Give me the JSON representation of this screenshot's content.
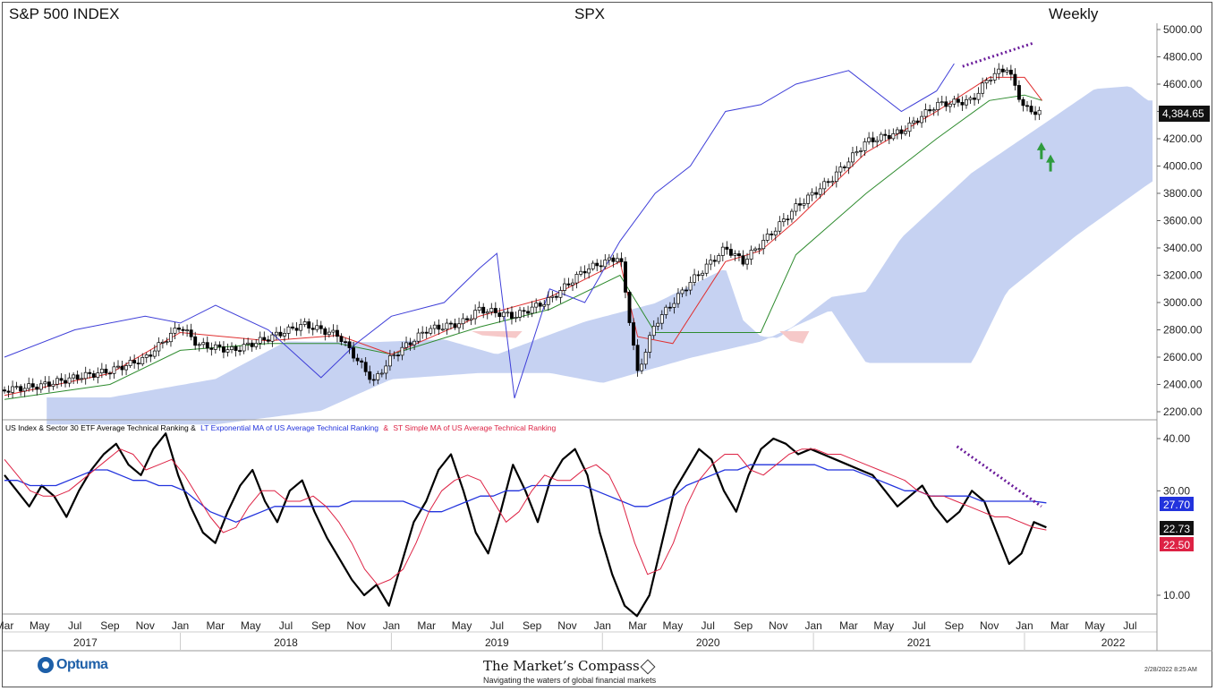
{
  "header": {
    "left": "S&P 500 INDEX",
    "center": "SPX",
    "right": "Weekly"
  },
  "footer": {
    "logo": "Optuma",
    "brand": "The Market’s Compass",
    "tagline": "Navigating the waters of global financial markets",
    "timestamp": "2/28/2022 8:25 AM"
  },
  "colors": {
    "price_candle": "#000000",
    "kijun": "#2e8b2e",
    "tenkan": "#e03030",
    "chikou": "#3f3fd8",
    "cloud_bull": "#c6d2f2",
    "cloud_bear": "#f6c9c9",
    "trendline": "#6a1b9a",
    "arrows": "#2e9b3e",
    "ranking": "#000000",
    "lt_ema": "#2233dd",
    "st_sma": "#dd2244"
  },
  "chart_data": [
    {
      "type": "candlestick",
      "title": "S&P 500 INDEX",
      "symbol": "SPX",
      "interval": "Weekly",
      "ylim": [
        2200,
        5000
      ],
      "y_ticks": [
        "5000.00",
        "4800.00",
        "4600.00",
        "4400.00",
        "4200.00",
        "4000.00",
        "3800.00",
        "3600.00",
        "3400.00",
        "3200.00",
        "3000.00",
        "2800.00",
        "2600.00",
        "2400.00",
        "2200.00"
      ],
      "last_value_label": "4,384.65",
      "series": [
        {
          "name": "close",
          "x": [
            "2017-03",
            "2017-05",
            "2017-07",
            "2017-09",
            "2017-11",
            "2018-01",
            "2018-02",
            "2018-04",
            "2018-06",
            "2018-08",
            "2018-10",
            "2018-12",
            "2019-01",
            "2019-03",
            "2019-05",
            "2019-06",
            "2019-08",
            "2019-10",
            "2019-12",
            "2020-02",
            "2020-03",
            "2020-04",
            "2020-06",
            "2020-08",
            "2020-09",
            "2020-11",
            "2020-12",
            "2021-02",
            "2021-04",
            "2021-06",
            "2021-08",
            "2021-10",
            "2021-11",
            "2021-12",
            "2022-01",
            "2022-02"
          ],
          "values": [
            2360,
            2390,
            2450,
            2500,
            2590,
            2830,
            2690,
            2650,
            2740,
            2840,
            2760,
            2420,
            2600,
            2800,
            2850,
            2950,
            2900,
            3020,
            3240,
            3340,
            2480,
            2850,
            3150,
            3400,
            3300,
            3560,
            3700,
            3900,
            4180,
            4250,
            4450,
            4480,
            4650,
            4720,
            4420,
            4385
          ]
        },
        {
          "name": "kijun",
          "x": [
            "2017-03",
            "2017-09",
            "2018-01",
            "2018-06",
            "2018-10",
            "2019-01",
            "2019-06",
            "2019-10",
            "2020-02",
            "2020-04",
            "2020-08",
            "2020-10",
            "2020-12",
            "2021-04",
            "2021-08",
            "2021-11",
            "2022-01",
            "2022-02"
          ],
          "values": [
            2290,
            2400,
            2650,
            2700,
            2700,
            2620,
            2820,
            2950,
            3200,
            2780,
            2780,
            2780,
            3350,
            3800,
            4200,
            4480,
            4520,
            4480
          ]
        },
        {
          "name": "tenkan",
          "x": [
            "2017-03",
            "2017-09",
            "2018-01",
            "2018-06",
            "2018-10",
            "2019-01",
            "2019-06",
            "2019-10",
            "2020-02",
            "2020-03",
            "2020-05",
            "2020-08",
            "2020-10",
            "2020-12",
            "2021-04",
            "2021-08",
            "2021-11",
            "2022-01",
            "2022-02"
          ],
          "values": [
            2320,
            2480,
            2780,
            2720,
            2760,
            2620,
            2900,
            3040,
            3300,
            2750,
            2700,
            3300,
            3380,
            3600,
            4100,
            4400,
            4650,
            4650,
            4480
          ]
        },
        {
          "name": "chikou",
          "x": [
            "2017-03",
            "2017-07",
            "2017-11",
            "2018-01",
            "2018-03",
            "2018-06",
            "2018-09",
            "2018-11",
            "2019-01",
            "2019-04",
            "2019-06",
            "2019-07",
            "2019-08",
            "2019-10",
            "2019-12",
            "2020-02",
            "2020-04",
            "2020-06",
            "2020-08",
            "2020-10",
            "2020-12",
            "2021-03",
            "2021-06",
            "2021-08",
            "2021-09"
          ],
          "values": [
            2600,
            2800,
            2900,
            2850,
            2980,
            2800,
            2450,
            2700,
            2900,
            3000,
            3250,
            3360,
            2300,
            3100,
            3000,
            3450,
            3800,
            4000,
            4400,
            4450,
            4600,
            4700,
            4400,
            4550,
            4750
          ]
        }
      ],
      "annotations": [
        {
          "type": "trendline",
          "style": "dotted",
          "from": [
            "2021-09",
            4730
          ],
          "to": [
            "2022-01",
            4900
          ]
        },
        {
          "type": "arrow",
          "direction": "up",
          "at": [
            "2022-01",
            4050
          ]
        },
        {
          "type": "arrow",
          "direction": "up",
          "at": [
            "2022-02",
            3960
          ]
        }
      ]
    },
    {
      "type": "line",
      "legend": [
        "US Index & Sector 30 ETF Average Technical  Ranking &",
        "LT Exponential MA of US Average Technical Ranking",
        "&",
        "ST Simple MA of US Average Technical Ranking"
      ],
      "ylim": [
        5,
        42
      ],
      "y_ticks": [
        "40.00",
        "30.00",
        "10.00"
      ],
      "last_value_labels": [
        "27.70",
        "22.73",
        "22.50"
      ],
      "x_month_labels": [
        "Mar",
        "May",
        "Jul",
        "Sep",
        "Nov",
        "Jan",
        "Mar",
        "May",
        "Jul",
        "Sep",
        "Nov",
        "Jan",
        "Mar",
        "May",
        "Jul",
        "Sep",
        "Nov",
        "Jan",
        "Mar",
        "May",
        "Jul",
        "Sep",
        "Nov",
        "Jan",
        "Mar",
        "May",
        "Jul",
        "Sep",
        "Nov",
        "Jan",
        "Mar",
        "May",
        "Jul"
      ],
      "x_year_labels": [
        "2017",
        "2018",
        "2019",
        "2020",
        "2021",
        "2022"
      ],
      "series": [
        {
          "name": "US Index & Sector 30 ETF Average Technical Ranking",
          "values": [
            33,
            30,
            27,
            31,
            29,
            25,
            30,
            34,
            37,
            39,
            35,
            33,
            38,
            41,
            33,
            27,
            22,
            20,
            26,
            31,
            34,
            28,
            24,
            30,
            32,
            26,
            21,
            17,
            13,
            10,
            12,
            8,
            16,
            24,
            28,
            34,
            37,
            30,
            22,
            18,
            26,
            35,
            30,
            24,
            32,
            36,
            38,
            33,
            22,
            14,
            8,
            6,
            10,
            20,
            30,
            34,
            38,
            36,
            30,
            26,
            33,
            38,
            40,
            39,
            37,
            38,
            37,
            36,
            35,
            34,
            33,
            30,
            27,
            29,
            31,
            27,
            24,
            26,
            30,
            28,
            22,
            16,
            18,
            24,
            23
          ]
        },
        {
          "name": "LT Exponential MA of US Average Technical Ranking",
          "values": [
            32,
            32,
            31,
            31,
            31,
            32,
            33,
            34,
            34,
            33,
            32,
            32,
            31,
            31,
            30,
            28,
            26,
            25,
            24,
            25,
            26,
            27,
            27,
            27,
            27,
            27,
            27,
            28,
            28,
            28,
            28,
            28,
            27,
            26,
            26,
            27,
            28,
            29,
            29,
            30,
            30,
            31,
            31,
            31,
            31,
            31,
            30,
            29,
            28,
            27,
            27,
            28,
            29,
            31,
            32,
            33,
            34,
            34,
            35,
            35,
            35,
            35,
            35,
            35,
            34,
            34,
            34,
            33,
            32,
            31,
            30,
            30,
            29,
            29,
            29,
            29,
            28,
            28,
            28,
            28,
            28,
            27.7
          ]
        },
        {
          "name": "ST Simple MA of US Average Technical Ranking",
          "values": [
            36,
            33,
            30,
            29,
            29,
            30,
            32,
            34,
            36,
            38,
            37,
            34,
            35,
            36,
            33,
            29,
            25,
            22,
            23,
            27,
            30,
            30,
            28,
            28,
            29,
            27,
            24,
            20,
            15,
            12,
            13,
            15,
            20,
            26,
            30,
            32,
            33,
            32,
            28,
            24,
            26,
            30,
            33,
            32,
            32,
            34,
            35,
            33,
            28,
            20,
            14,
            15,
            20,
            27,
            32,
            35,
            37,
            37,
            34,
            33,
            35,
            37,
            38,
            38,
            37,
            37,
            36,
            35,
            34,
            33,
            32,
            30,
            29,
            29,
            28,
            27,
            26,
            25,
            25,
            24,
            23,
            22.5
          ]
        }
      ],
      "annotations": [
        {
          "type": "trendline",
          "style": "dotted",
          "from_value": 38.5,
          "to_value": 27.0
        }
      ]
    }
  ]
}
